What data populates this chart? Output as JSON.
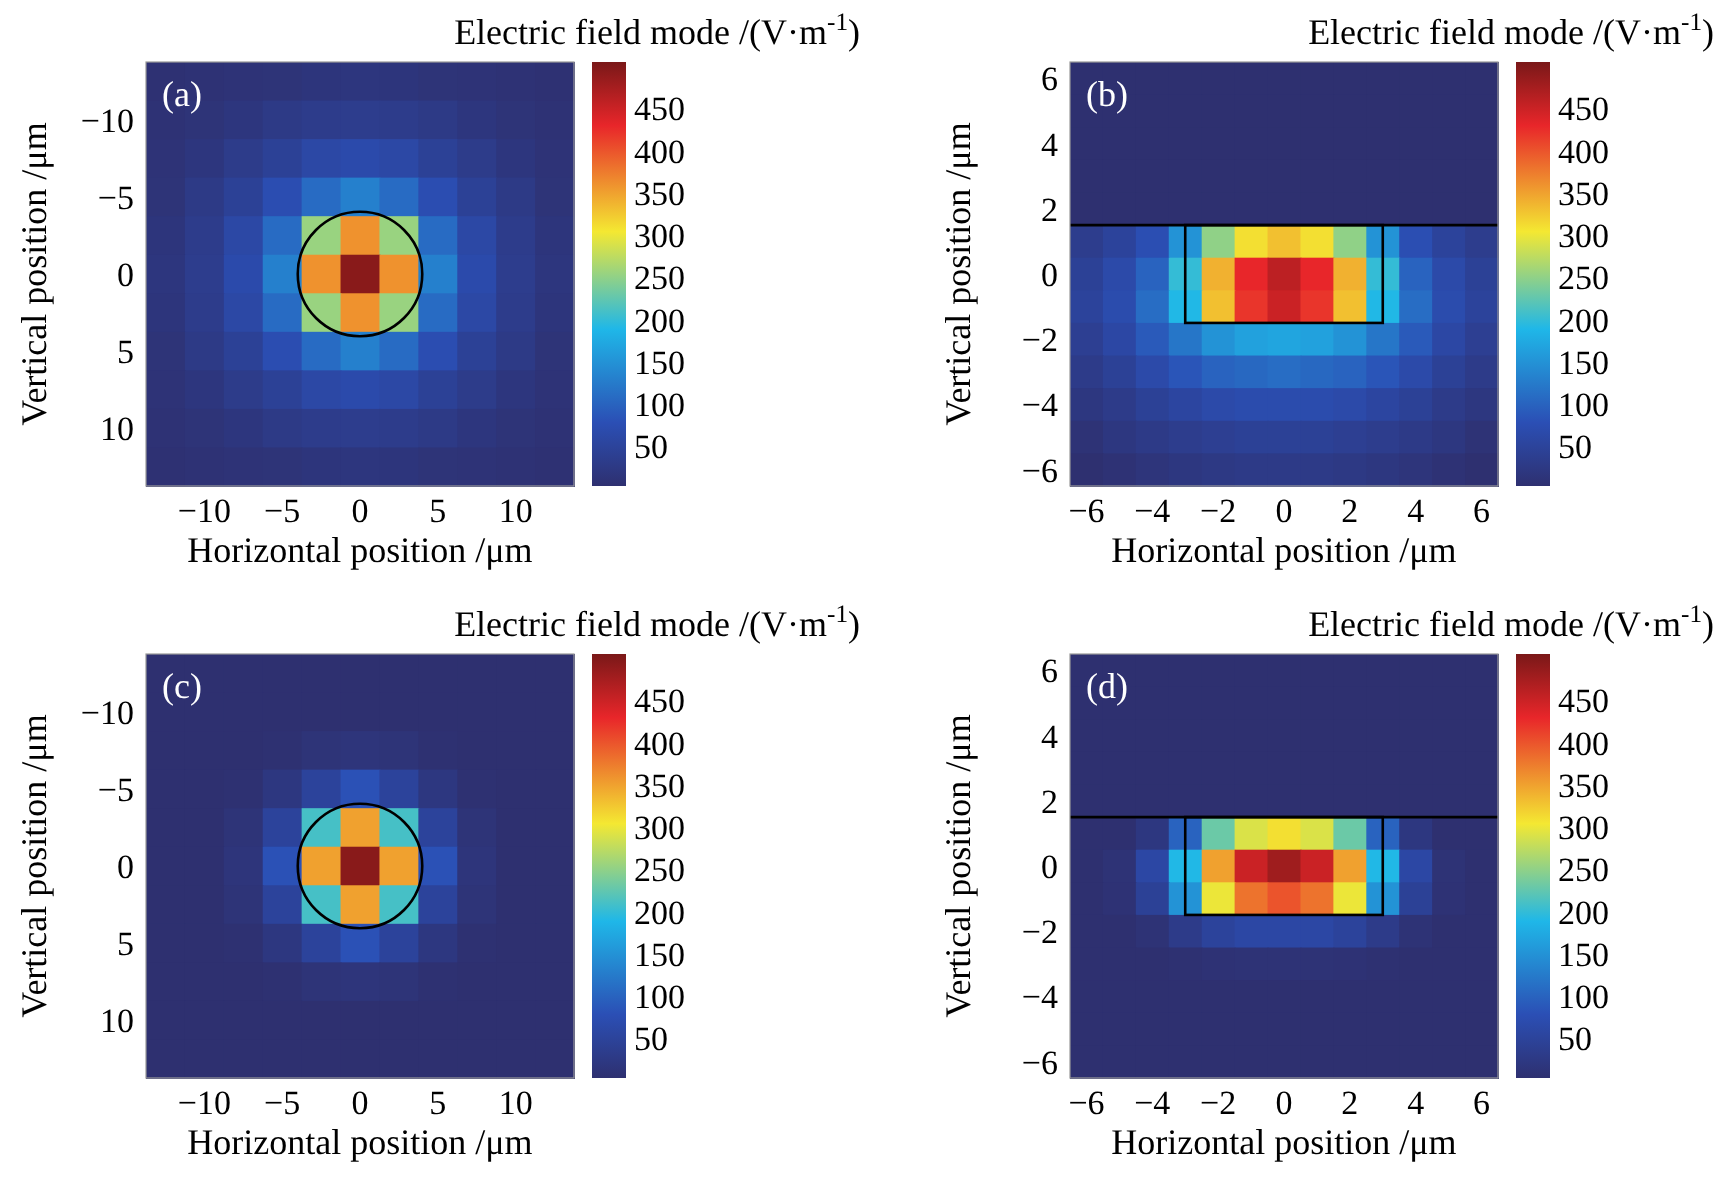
{
  "chart_data": [
    {
      "type": "heatmap",
      "xlabel": "Horizontal position /μm",
      "ylabel": "Vertical position /μm",
      "clabel": "Electric field mode /(V·m$^{-1}$)",
      "annotations": [
        "(a)"
      ],
      "categories": [
        null,
        "−10",
        null,
        "−5",
        null,
        "0",
        null,
        "5",
        null,
        "10",
        null
      ],
      "y_categories": [
        null,
        "−10",
        null,
        "−5",
        null,
        "0",
        null,
        "5",
        null,
        "10",
        null
      ],
      "clim": [
        3,
        505
      ],
      "cticks": [
        50,
        100,
        150,
        200,
        250,
        300,
        350,
        400,
        450
      ],
      "cells": [
        [
          6,
          8,
          11,
          12,
          16,
          18,
          16,
          12,
          11,
          8,
          6
        ],
        [
          8,
          12,
          18,
          27,
          33,
          35,
          33,
          27,
          18,
          12,
          8
        ],
        [
          11,
          18,
          31,
          45,
          61,
          67,
          61,
          45,
          31,
          18,
          11
        ],
        [
          12,
          27,
          45,
          74,
          108,
          130,
          108,
          74,
          45,
          27,
          12
        ],
        [
          16,
          33,
          61,
          108,
          255,
          360,
          255,
          108,
          61,
          33,
          16
        ],
        [
          18,
          35,
          67,
          130,
          360,
          495,
          360,
          130,
          67,
          35,
          18
        ],
        [
          16,
          33,
          61,
          108,
          255,
          360,
          255,
          108,
          61,
          33,
          16
        ],
        [
          12,
          27,
          45,
          74,
          108,
          130,
          108,
          74,
          45,
          27,
          12
        ],
        [
          11,
          18,
          31,
          45,
          61,
          67,
          61,
          45,
          31,
          18,
          11
        ],
        [
          8,
          12,
          18,
          27,
          33,
          35,
          33,
          27,
          18,
          12,
          8
        ],
        [
          6,
          8,
          11,
          12,
          16,
          18,
          16,
          12,
          11,
          8,
          6
        ]
      ]
    },
    {
      "type": "heatmap",
      "xlabel": "Horizontal position /μm",
      "ylabel": "Vertical position /μm",
      "clabel": "Electric field mode /(V·m$^{-1}$)",
      "annotations": [
        "(b)"
      ],
      "categories": [
        "−6",
        null,
        "−4",
        null,
        "−2",
        null,
        "0",
        null,
        "2",
        null,
        "4",
        null,
        "6"
      ],
      "y_categories": [
        "6",
        null,
        "4",
        null,
        "2",
        null,
        "0",
        null,
        "−2",
        null,
        "−4",
        null,
        "−6"
      ],
      "clim": [
        3,
        505
      ],
      "cticks": [
        50,
        100,
        150,
        200,
        250,
        300,
        350,
        400,
        450
      ],
      "cells": [
        [
          3,
          3,
          3,
          3,
          3,
          3,
          3,
          3,
          3,
          3,
          3,
          3,
          3
        ],
        [
          3,
          3,
          3,
          3,
          3,
          3,
          3,
          3,
          3,
          3,
          3,
          3,
          3
        ],
        [
          3,
          3,
          3,
          3,
          3,
          3,
          3,
          3,
          3,
          3,
          3,
          3,
          3
        ],
        [
          3,
          3,
          3,
          3,
          3,
          3,
          3,
          3,
          3,
          3,
          3,
          3,
          3
        ],
        [
          3,
          3,
          3,
          3,
          3,
          3,
          3,
          3,
          3,
          3,
          3,
          3,
          3
        ],
        [
          35,
          50,
          75,
          150,
          250,
          310,
          330,
          310,
          250,
          150,
          75,
          50,
          35
        ],
        [
          45,
          65,
          100,
          200,
          340,
          430,
          460,
          430,
          340,
          200,
          100,
          65,
          45
        ],
        [
          50,
          70,
          110,
          190,
          330,
          420,
          450,
          420,
          330,
          190,
          110,
          70,
          50
        ],
        [
          40,
          60,
          90,
          120,
          150,
          165,
          170,
          165,
          150,
          120,
          90,
          60,
          40
        ],
        [
          30,
          45,
          65,
          85,
          100,
          105,
          110,
          105,
          100,
          85,
          65,
          45,
          30
        ],
        [
          20,
          30,
          45,
          55,
          65,
          70,
          70,
          70,
          65,
          55,
          45,
          30,
          20
        ],
        [
          10,
          20,
          28,
          35,
          40,
          45,
          45,
          45,
          40,
          35,
          28,
          20,
          10
        ],
        [
          3,
          8,
          15,
          20,
          25,
          28,
          28,
          28,
          25,
          20,
          15,
          8,
          3
        ]
      ]
    },
    {
      "type": "heatmap",
      "xlabel": "Horizontal position /μm",
      "ylabel": "Vertical position /μm",
      "clabel": "Electric field mode /(V·m$^{-1}$)",
      "annotations": [
        "(c)"
      ],
      "categories": [
        null,
        "−10",
        null,
        "−5",
        null,
        "0",
        null,
        "5",
        null,
        "10",
        null
      ],
      "y_categories": [
        null,
        "−10",
        null,
        "−5",
        null,
        "0",
        null,
        "5",
        null,
        "10",
        null
      ],
      "clim": [
        3,
        505
      ],
      "cticks": [
        50,
        100,
        150,
        200,
        250,
        300,
        350,
        400,
        450
      ],
      "cells": [
        [
          3,
          3,
          3,
          3,
          3,
          3,
          3,
          3,
          3,
          3,
          3
        ],
        [
          3,
          3,
          3,
          3,
          3,
          3,
          3,
          3,
          3,
          3,
          3
        ],
        [
          3,
          3,
          3,
          5,
          12,
          15,
          12,
          5,
          3,
          3,
          3
        ],
        [
          3,
          3,
          5,
          20,
          50,
          80,
          50,
          20,
          5,
          3,
          3
        ],
        [
          3,
          3,
          12,
          50,
          210,
          350,
          210,
          50,
          12,
          3,
          3
        ],
        [
          3,
          3,
          15,
          80,
          350,
          495,
          350,
          80,
          15,
          3,
          3
        ],
        [
          3,
          3,
          12,
          50,
          210,
          350,
          210,
          50,
          12,
          3,
          3
        ],
        [
          3,
          3,
          5,
          20,
          50,
          80,
          50,
          20,
          5,
          3,
          3
        ],
        [
          3,
          3,
          3,
          5,
          12,
          15,
          12,
          5,
          3,
          3,
          3
        ],
        [
          3,
          3,
          3,
          3,
          3,
          3,
          3,
          3,
          3,
          3,
          3
        ],
        [
          3,
          3,
          3,
          3,
          3,
          3,
          3,
          3,
          3,
          3,
          3
        ]
      ]
    },
    {
      "type": "heatmap",
      "xlabel": "Horizontal position /μm",
      "ylabel": "Vertical position /μm",
      "clabel": "Electric field mode /(V·m$^{-1}$)",
      "annotations": [
        "(d)"
      ],
      "categories": [
        "−6",
        null,
        "−4",
        null,
        "−2",
        null,
        "0",
        null,
        "2",
        null,
        "4",
        null,
        "6"
      ],
      "y_categories": [
        "6",
        null,
        "4",
        null,
        "2",
        null,
        "0",
        null,
        "−2",
        null,
        "−4",
        null,
        "−6"
      ],
      "clim": [
        3,
        505
      ],
      "cticks": [
        50,
        100,
        150,
        200,
        250,
        300,
        350,
        400,
        450
      ],
      "cells": [
        [
          3,
          3,
          3,
          3,
          3,
          3,
          3,
          3,
          3,
          3,
          3,
          3,
          3
        ],
        [
          3,
          3,
          3,
          3,
          3,
          3,
          3,
          3,
          3,
          3,
          3,
          3,
          3
        ],
        [
          3,
          3,
          3,
          3,
          3,
          3,
          3,
          3,
          3,
          3,
          3,
          3,
          3
        ],
        [
          3,
          3,
          3,
          3,
          3,
          3,
          3,
          3,
          3,
          3,
          3,
          3,
          3
        ],
        [
          3,
          3,
          3,
          3,
          3,
          3,
          3,
          3,
          3,
          3,
          3,
          3,
          3
        ],
        [
          3,
          3,
          20,
          100,
          230,
          290,
          310,
          290,
          230,
          100,
          20,
          3,
          3
        ],
        [
          3,
          10,
          60,
          190,
          350,
          450,
          480,
          450,
          350,
          190,
          60,
          10,
          3
        ],
        [
          3,
          8,
          45,
          150,
          300,
          380,
          400,
          380,
          300,
          150,
          45,
          8,
          3
        ],
        [
          3,
          3,
          10,
          30,
          50,
          60,
          60,
          60,
          50,
          30,
          10,
          3,
          3
        ],
        [
          3,
          3,
          3,
          5,
          8,
          10,
          10,
          10,
          8,
          5,
          3,
          3,
          3
        ],
        [
          3,
          3,
          3,
          3,
          3,
          3,
          3,
          3,
          3,
          3,
          3,
          3,
          3
        ],
        [
          3,
          3,
          3,
          3,
          3,
          3,
          3,
          3,
          3,
          3,
          3,
          3,
          3
        ],
        [
          3,
          3,
          3,
          3,
          3,
          3,
          3,
          3,
          3,
          3,
          3,
          3,
          3
        ]
      ]
    }
  ]
}
